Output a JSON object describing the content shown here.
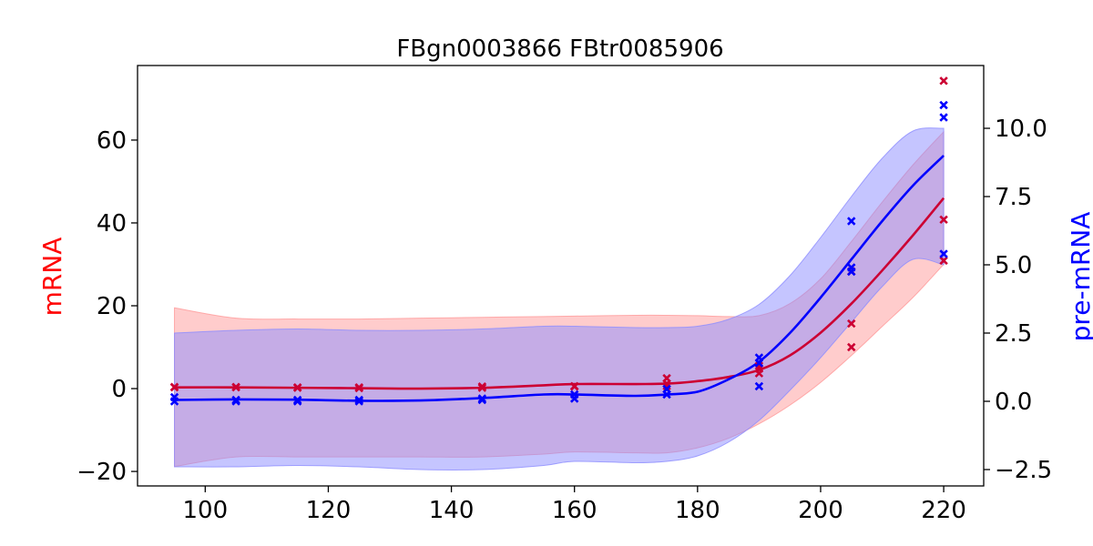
{
  "chart_data": {
    "type": "line",
    "title": "FBgn0003866 FBtr0085906",
    "xlabel": "",
    "xlim": [
      89,
      226.5
    ],
    "xticks": [
      100,
      120,
      140,
      160,
      180,
      200,
      220
    ],
    "left_axis": {
      "label": "mRNA",
      "color": "#ff0000",
      "ylim": [
        -23.5,
        78
      ],
      "ticks": [
        -20,
        0,
        20,
        40,
        60
      ]
    },
    "right_axis": {
      "label": "pre-mRNA",
      "color": "#0000ff",
      "ylim": [
        -3.1,
        12.3
      ],
      "ticks": [
        -2.5,
        0.0,
        2.5,
        5.0,
        7.5,
        10.0
      ]
    },
    "grid": false,
    "series": [
      {
        "axis": "left",
        "color": "#cc0033",
        "band_color": "#ff9999",
        "x": [
          95,
          105,
          115,
          125,
          135,
          145,
          155,
          160,
          170,
          175,
          180,
          185,
          190,
          195,
          200,
          205,
          210,
          215,
          220
        ],
        "mean": [
          0.3,
          0.3,
          0.2,
          0.1,
          0.0,
          0.2,
          0.8,
          1.1,
          1.1,
          1.2,
          1.8,
          2.8,
          4.5,
          8.0,
          13.5,
          20.5,
          28.5,
          37.0,
          46.0
        ],
        "upper": [
          19.5,
          17.0,
          16.8,
          16.8,
          17.0,
          17.2,
          17.4,
          17.5,
          17.7,
          17.7,
          17.6,
          17.4,
          17.6,
          20.5,
          26.5,
          35.5,
          45.0,
          54.0,
          62.0
        ],
        "lower": [
          -18.8,
          -16.5,
          -16.5,
          -16.5,
          -16.5,
          -16.5,
          -15.8,
          -15.3,
          -15.5,
          -15.5,
          -14.3,
          -12.0,
          -8.5,
          -4.0,
          1.5,
          8.0,
          15.0,
          22.0,
          30.0
        ],
        "points_x": [
          95,
          95,
          105,
          105,
          115,
          115,
          125,
          125,
          145,
          145,
          160,
          160,
          175,
          175,
          175,
          190,
          190,
          190,
          205,
          205,
          205,
          220,
          220,
          220
        ],
        "points_y": [
          0.3,
          0.4,
          0.3,
          0.4,
          0.2,
          0.3,
          0.1,
          0.3,
          0.2,
          0.5,
          0.5,
          0.6,
          0.6,
          1.2,
          2.5,
          3.7,
          4.8,
          5.5,
          10.0,
          15.7,
          28.3,
          30.9,
          40.8,
          74.3
        ]
      },
      {
        "axis": "right",
        "color": "#0000ff",
        "band_color": "#8c8cff",
        "x": [
          95,
          105,
          115,
          125,
          135,
          145,
          155,
          160,
          170,
          175,
          180,
          185,
          190,
          195,
          200,
          205,
          210,
          215,
          220
        ],
        "mean": [
          0.05,
          0.07,
          0.06,
          0.02,
          0.03,
          0.12,
          0.25,
          0.25,
          0.2,
          0.25,
          0.35,
          0.8,
          1.45,
          2.5,
          3.8,
          5.2,
          6.6,
          7.9,
          9.0
        ],
        "upper": [
          2.5,
          2.6,
          2.65,
          2.6,
          2.6,
          2.65,
          2.75,
          2.75,
          2.7,
          2.7,
          2.75,
          3.0,
          3.55,
          4.6,
          6.0,
          7.5,
          8.9,
          9.9,
          10.0
        ],
        "lower": [
          -2.4,
          -2.4,
          -2.35,
          -2.4,
          -2.5,
          -2.5,
          -2.35,
          -2.2,
          -2.25,
          -2.2,
          -2.0,
          -1.5,
          -0.7,
          0.4,
          1.6,
          2.9,
          4.2,
          5.2,
          5.0
        ],
        "points_x": [
          95,
          95,
          105,
          105,
          115,
          115,
          125,
          125,
          145,
          145,
          160,
          160,
          175,
          175,
          190,
          190,
          190,
          205,
          205,
          205,
          220,
          220,
          220
        ],
        "points_y": [
          0.0,
          0.15,
          0.0,
          0.05,
          0.0,
          0.05,
          0.0,
          0.05,
          0.05,
          0.1,
          0.1,
          0.25,
          0.25,
          0.45,
          0.55,
          1.4,
          1.6,
          4.75,
          4.9,
          6.6,
          5.4,
          10.4,
          10.85
        ]
      }
    ]
  }
}
